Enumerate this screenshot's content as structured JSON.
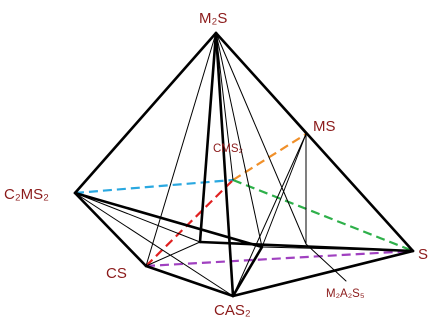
{
  "labels": {
    "m2s": "M₂S",
    "ms": "MS",
    "cms2": "CMS₂",
    "c2ms2": "C₂MS₂",
    "s": "S",
    "cs": "CS",
    "cas2": "CAS₂",
    "m2a2s5": "M₂A₂S₅"
  },
  "colors": {
    "label": "#8b1a1a",
    "edge": "#000000",
    "dash_orange": "#f0902a",
    "dash_blue": "#2aa8e0",
    "dash_green": "#2eb04a",
    "dash_red": "#e02020",
    "dash_purple": "#a040c0"
  }
}
